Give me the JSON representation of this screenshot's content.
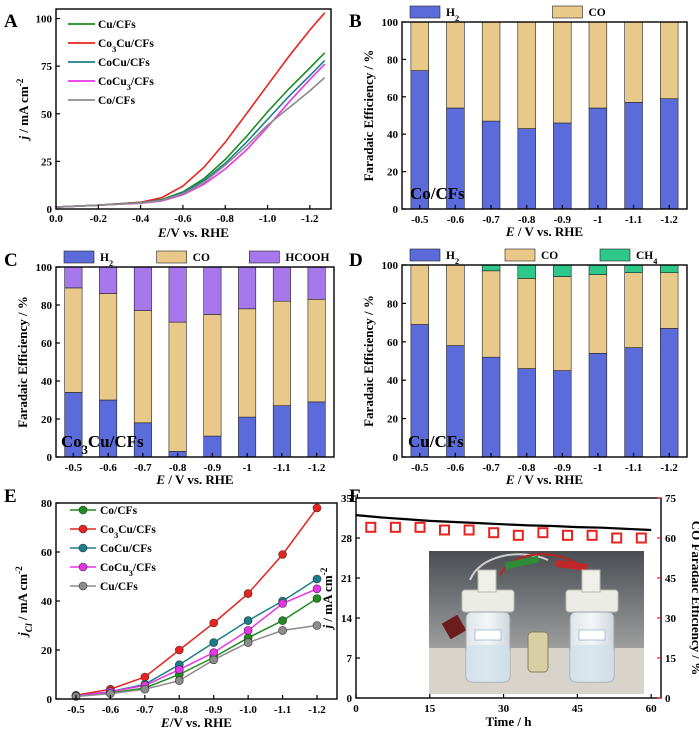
{
  "chart_data": [
    {
      "panel": "A",
      "type": "line",
      "xlabel_parts": [
        "E",
        "/V vs. RHE"
      ],
      "ylabel_parts": [
        "j",
        " / mA cm",
        "-2"
      ],
      "xlim": [
        0,
        -1.3
      ],
      "ylim": [
        0,
        105
      ],
      "xticks": [
        "0.0",
        "-0.2",
        "-0.4",
        "-0.6",
        "-0.8",
        "-1.0",
        "-1.2"
      ],
      "xtick_values": [
        0,
        -0.2,
        -0.4,
        -0.6,
        -0.8,
        -1.0,
        -1.2
      ],
      "yticks": [
        0,
        25,
        50,
        75,
        100
      ],
      "legend": [
        {
          "name": "Cu/CFs",
          "base": "Cu/CFs",
          "sub": "",
          "rest": ""
        },
        {
          "name": "Co3Cu/CFs",
          "base": "Co",
          "sub": "3",
          "rest": "Cu/CFs"
        },
        {
          "name": "CoCu/CFs",
          "base": "CoCu/CFs",
          "sub": "",
          "rest": ""
        },
        {
          "name": "CoCu3/CFs",
          "base": "CoCu",
          "sub": "3",
          "rest": "/CFs"
        },
        {
          "name": "Co/CFs",
          "base": "Co/CFs",
          "sub": "",
          "rest": ""
        }
      ],
      "series": [
        {
          "name": "Cu/CFs",
          "color": "#1e8c1e",
          "x": [
            0,
            -0.2,
            -0.4,
            -0.5,
            -0.6,
            -0.7,
            -0.8,
            -0.9,
            -1.0,
            -1.1,
            -1.2,
            -1.27
          ],
          "y": [
            1,
            2,
            3.5,
            5,
            9,
            16,
            26,
            38,
            51,
            63,
            74,
            82
          ]
        },
        {
          "name": "Co3Cu/CFs",
          "color": "#e8231e",
          "x": [
            0,
            -0.2,
            -0.4,
            -0.5,
            -0.6,
            -0.7,
            -0.8,
            -0.9,
            -1.0,
            -1.1,
            -1.2,
            -1.27
          ],
          "y": [
            1,
            2,
            3.5,
            6,
            12,
            22,
            35,
            50,
            65,
            80,
            94,
            103
          ]
        },
        {
          "name": "CoCu/CFs",
          "color": "#1a7f8a",
          "x": [
            0,
            -0.2,
            -0.4,
            -0.5,
            -0.6,
            -0.7,
            -0.8,
            -0.9,
            -1.0,
            -1.1,
            -1.2,
            -1.27
          ],
          "y": [
            1,
            2,
            3.3,
            4.8,
            8.5,
            15,
            24,
            35,
            47,
            59,
            70,
            78
          ]
        },
        {
          "name": "CoCu3/CFs",
          "color": "#e834e8",
          "x": [
            0,
            -0.2,
            -0.4,
            -0.5,
            -0.6,
            -0.7,
            -0.8,
            -0.9,
            -1.0,
            -1.1,
            -1.2,
            -1.27
          ],
          "y": [
            1,
            2,
            3,
            4.2,
            7.5,
            13,
            21,
            31,
            43,
            56,
            68,
            76
          ]
        },
        {
          "name": "Co/CFs",
          "color": "#8c8c8c",
          "x": [
            0,
            -0.2,
            -0.4,
            -0.5,
            -0.6,
            -0.7,
            -0.8,
            -0.9,
            -1.0,
            -1.1,
            -1.2,
            -1.27
          ],
          "y": [
            1,
            2,
            3.2,
            4.5,
            8,
            14,
            23,
            33,
            44,
            53,
            62,
            69
          ]
        }
      ]
    },
    {
      "panel": "B",
      "type": "stacked-bar",
      "inset_label": "Co/CFs",
      "categories": [
        "-0.5",
        "-0.6",
        "-0.7",
        "-0.8",
        "-0.9",
        "-1",
        "-1.1",
        "-1.2"
      ],
      "xlabel_parts": [
        "E",
        " / V vs. RHE"
      ],
      "ylabel": "Faradaic Efficiency / %",
      "ylim": [
        0,
        100
      ],
      "yticks": [
        0,
        20,
        40,
        60,
        80,
        100
      ],
      "series": [
        {
          "name": "H2",
          "label_base": "H",
          "label_sub": "2",
          "color": "#5b6bd9",
          "values": [
            74,
            54,
            47,
            43,
            46,
            54,
            57,
            59
          ]
        },
        {
          "name": "CO",
          "label_base": "CO",
          "label_sub": "",
          "color": "#e8c98a",
          "values": [
            26,
            46,
            53,
            57,
            54,
            46,
            43,
            41
          ]
        }
      ]
    },
    {
      "panel": "C",
      "type": "stacked-bar",
      "inset_label_base": "Co",
      "inset_label_sub": "3",
      "inset_label_rest": "Cu/CFs",
      "categories": [
        "-0.5",
        "-0.6",
        "-0.7",
        "-0.8",
        "-0.9",
        "-1",
        "-1.1",
        "-1.2"
      ],
      "xlabel_parts": [
        "E",
        " / V vs. RHE"
      ],
      "ylabel": "Faradaic Efficiency / %",
      "ylim": [
        0,
        100
      ],
      "yticks": [
        0,
        20,
        40,
        60,
        80,
        100
      ],
      "series": [
        {
          "name": "H2",
          "label_base": "H",
          "label_sub": "2",
          "color": "#5b6bd9",
          "values": [
            34,
            30,
            18,
            3,
            11,
            21,
            27,
            29
          ]
        },
        {
          "name": "CO",
          "label_base": "CO",
          "label_sub": "",
          "color": "#e8c98a",
          "values": [
            55,
            56,
            59,
            68,
            64,
            57,
            55,
            54
          ]
        },
        {
          "name": "HCOOH",
          "label_base": "HCOOH",
          "label_sub": "",
          "color": "#a678ec",
          "values": [
            11,
            14,
            23,
            29,
            25,
            22,
            18,
            17
          ]
        }
      ]
    },
    {
      "panel": "D",
      "type": "stacked-bar",
      "inset_label": "Cu/CFs",
      "categories": [
        "-0.5",
        "-0.6",
        "-0.7",
        "-0.8",
        "-0.9",
        "-1",
        "-1.1",
        "-1.2"
      ],
      "xlabel_parts": [
        "E",
        " / V vs. RHE"
      ],
      "ylabel": "Faradaic Efficiency / %",
      "ylim": [
        0,
        100
      ],
      "yticks": [
        0,
        20,
        40,
        60,
        80,
        100
      ],
      "series": [
        {
          "name": "H2",
          "label_base": "H",
          "label_sub": "2",
          "color": "#5b6bd9",
          "values": [
            69,
            58,
            52,
            46,
            45,
            54,
            57,
            67
          ]
        },
        {
          "name": "CO",
          "label_base": "CO",
          "label_sub": "",
          "color": "#e8c98a",
          "values": [
            31,
            42,
            45,
            47,
            49,
            41,
            39,
            29
          ]
        },
        {
          "name": "CH4",
          "label_base": "CH",
          "label_sub": "4",
          "color": "#2ec88a",
          "values": [
            0,
            0,
            3,
            7,
            6,
            5,
            4,
            4
          ]
        }
      ]
    },
    {
      "panel": "E",
      "type": "line",
      "categories": [
        "-0.5",
        "-0.6",
        "-0.7",
        "-0.8",
        "-0.9",
        "-1.0",
        "-1.1",
        "-1.2"
      ],
      "xlabel_parts": [
        "E",
        "/V vs. RHE"
      ],
      "ylabel_parts": [
        "j",
        "Cl",
        " / mA cm",
        "-2"
      ],
      "ylim": [
        0,
        80
      ],
      "yticks": [
        0,
        20,
        40,
        60,
        80
      ],
      "legend": [
        {
          "name": "Co/CFs",
          "base": "Co/CFs",
          "sub": "",
          "rest": ""
        },
        {
          "name": "Co3Cu/CFs",
          "base": "Co",
          "sub": "3",
          "rest": "Cu/CFs"
        },
        {
          "name": "CoCu/CFs",
          "base": "CoCu/CFs",
          "sub": "",
          "rest": ""
        },
        {
          "name": "CoCu3/CFs",
          "base": "CoCu",
          "sub": "3",
          "rest": "/CFs"
        },
        {
          "name": "Cu/CFs",
          "base": "Cu/CFs",
          "sub": "",
          "rest": ""
        }
      ],
      "series": [
        {
          "name": "Co/CFs",
          "color": "#1e8c1e",
          "values": [
            1.2,
            2.5,
            4.5,
            10,
            17,
            25,
            32,
            41
          ]
        },
        {
          "name": "Co3Cu/CFs",
          "color": "#e8231e",
          "values": [
            1.5,
            4,
            9,
            20,
            31,
            43,
            59,
            78
          ]
        },
        {
          "name": "CoCu/CFs",
          "color": "#1a7f8a",
          "values": [
            1.3,
            3,
            6,
            14,
            23,
            32,
            40,
            49
          ]
        },
        {
          "name": "CoCu3/CFs",
          "color": "#e834e8",
          "values": [
            1.2,
            3,
            5.5,
            12,
            19,
            28,
            39,
            45
          ]
        },
        {
          "name": "Cu/CFs",
          "color": "#8c8c8c",
          "values": [
            1,
            2.2,
            4,
            7.5,
            16,
            23,
            28,
            30
          ]
        }
      ]
    },
    {
      "panel": "F",
      "type": "line+scatter",
      "xlabel": "Time / h",
      "ylabel_parts": [
        "j",
        " / mA cm",
        "-2"
      ],
      "ylabel_right": "CO Faradaic Efficiency / %",
      "xlim": [
        0,
        62
      ],
      "xticks": [
        0,
        15,
        30,
        45,
        60
      ],
      "ylim_left": [
        0,
        35
      ],
      "yticks_left": [
        0,
        7,
        14,
        21,
        28,
        35
      ],
      "ylim_right": [
        0,
        75
      ],
      "yticks_right": [
        0,
        15,
        30,
        45,
        60,
        75
      ],
      "series": [
        {
          "name": "current density",
          "axis": "left",
          "color": "#000000",
          "x": [
            0,
            5,
            10,
            15,
            20,
            25,
            30,
            35,
            40,
            45,
            50,
            55,
            60
          ],
          "y": [
            32,
            31.6,
            31.3,
            31.0,
            30.8,
            30.6,
            30.4,
            30.2,
            30.1,
            29.9,
            29.8,
            29.6,
            29.4
          ]
        },
        {
          "name": "CO Faradaic Efficiency",
          "axis": "right",
          "color": "#e8231e",
          "x": [
            3,
            8,
            13,
            18,
            23,
            28,
            33,
            38,
            43,
            48,
            53,
            58
          ],
          "y": [
            64,
            64,
            64,
            63,
            63,
            62,
            61,
            62,
            61,
            61,
            60,
            60
          ]
        }
      ]
    }
  ]
}
